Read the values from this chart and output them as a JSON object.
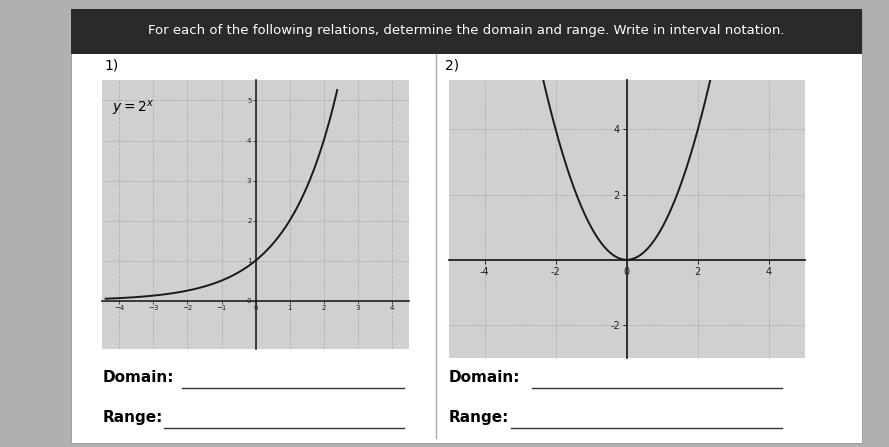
{
  "title": "For each of the following relations, determine the domain and range. Write in interval notation.",
  "title_fontsize": 9.5,
  "bg_color": "#b0b0b0",
  "paper_color": "#ffffff",
  "plot_bg": "#d0d0d0",
  "graph1_label": "$y=2^x$",
  "graph1_number": "1)",
  "graph2_number": "2)",
  "domain_label": "Domain:",
  "range_label": "Range:",
  "graph1_xlim": [
    -4.5,
    4.5
  ],
  "graph1_ylim": [
    -1.2,
    5.5
  ],
  "graph1_xticks": [
    -4,
    -3,
    -2,
    -1,
    0,
    1,
    2,
    3,
    4
  ],
  "graph1_yticks": [
    0,
    1,
    2,
    3,
    4,
    5
  ],
  "graph2_xlim": [
    -5,
    5
  ],
  "graph2_ylim": [
    -3,
    5.5
  ],
  "graph2_xticks": [
    -4,
    -2,
    0,
    2,
    4
  ],
  "graph2_yticks": [
    -2,
    0,
    2,
    4
  ],
  "graph2_xtick_labels": [
    "-4",
    "-2",
    "0",
    "2",
    "4"
  ],
  "graph2_ytick_labels": [
    "-2",
    "",
    "2",
    "4"
  ],
  "line_color": "#1a1a1a",
  "axis_color": "#222222",
  "grid_color": "#999999",
  "grid_style": "--",
  "grid_alpha": 0.6,
  "underline_color": "#333333",
  "label_fontsize": 11,
  "number_fontsize": 10
}
